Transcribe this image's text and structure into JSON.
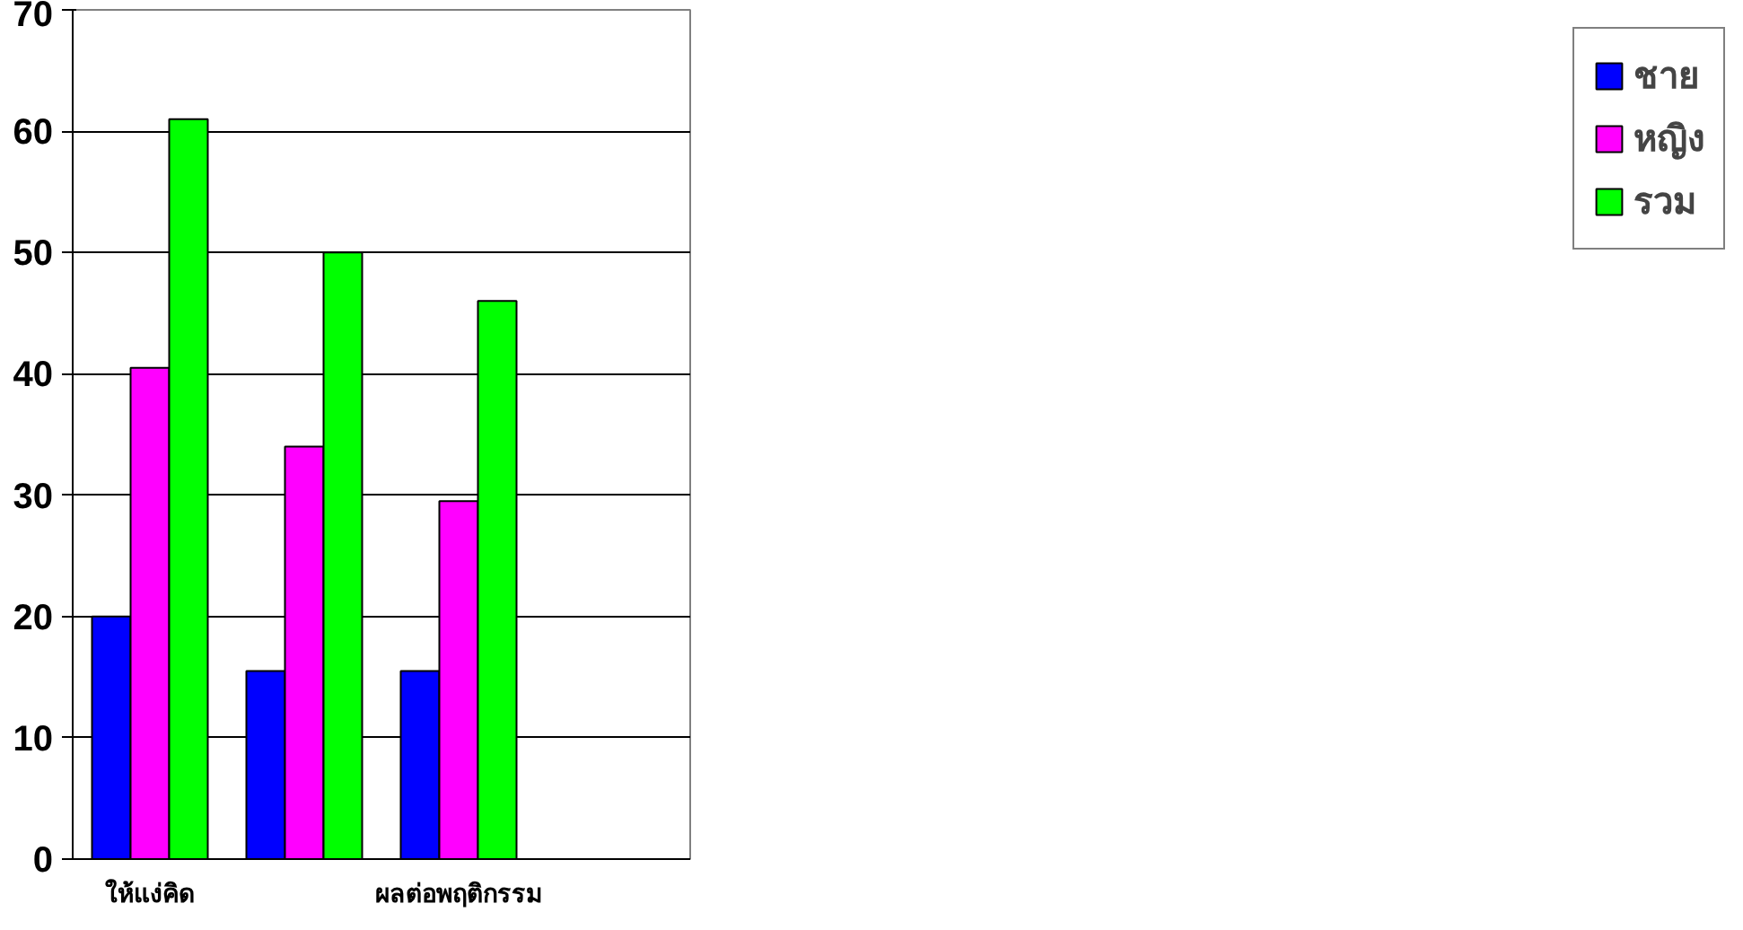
{
  "chart_data": {
    "type": "bar",
    "categories": [
      "ให้แง่คิด",
      null,
      "ผลต่อพฤติกรรม",
      null
    ],
    "series": [
      {
        "name": "ชาย",
        "color": "#0000ff",
        "values": [
          20,
          15.5,
          15.5,
          null
        ]
      },
      {
        "name": "หญิง",
        "color": "#ff00ff",
        "values": [
          40.5,
          34,
          29.5,
          null
        ]
      },
      {
        "name": "รวม",
        "color": "#00ff00",
        "values": [
          61,
          50,
          46,
          null
        ]
      }
    ],
    "ylim": [
      0,
      70
    ],
    "yticks": [
      0,
      10,
      20,
      30,
      40,
      50,
      60,
      70
    ],
    "grid": "y",
    "legend": "right"
  }
}
